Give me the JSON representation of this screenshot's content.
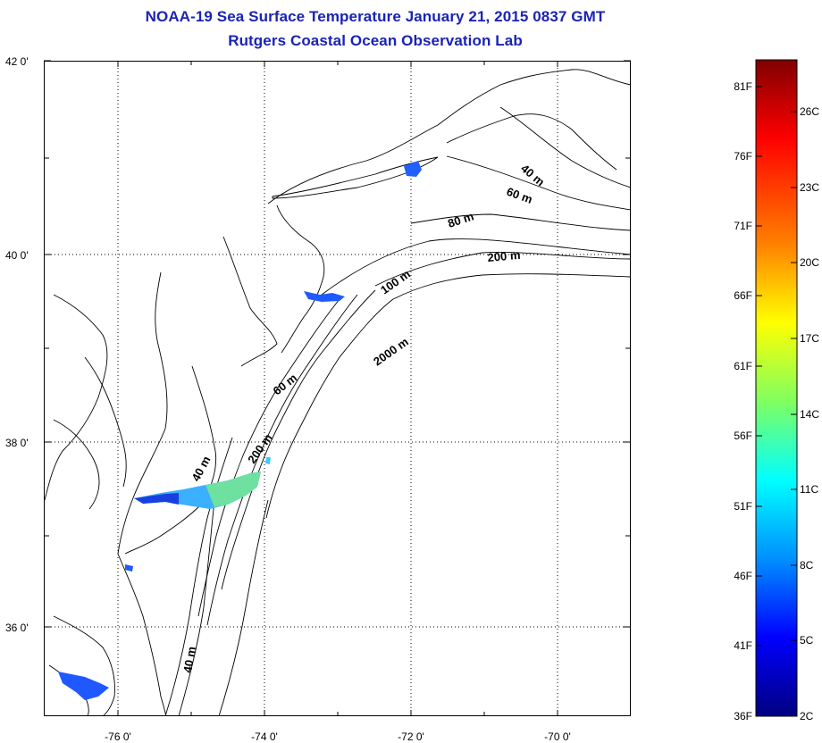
{
  "title": {
    "line1": "NOAA-19 Sea Surface Temperature January 21, 2015 0837 GMT",
    "line2": "Rutgers Coastal Ocean Observation Lab"
  },
  "map": {
    "lat_labels": [
      "42 0'",
      "40 0'",
      "38 0'",
      "36 0'"
    ],
    "lon_labels": [
      "-76 0'",
      "-74 0'",
      "-72 0'",
      "-70 0'"
    ],
    "depth_labels": [
      "40 m",
      "60 m",
      "80 m",
      "200 m",
      "100 m",
      "2000 m",
      "60 m",
      "40 m",
      "200 m",
      "40 m"
    ],
    "colors": {
      "land_line": "#000000",
      "frame": "#000000",
      "grid": "#000000"
    }
  },
  "colorbar": {
    "fahrenheit_labels": [
      "81F",
      "76F",
      "71F",
      "66F",
      "61F",
      "56F",
      "51F",
      "46F",
      "41F",
      "36F"
    ],
    "celsius_labels": [
      "26C",
      "23C",
      "20C",
      "17C",
      "14C",
      "11C",
      "8C",
      "5C",
      "2C"
    ],
    "gradient_colors": [
      "#800000",
      "#ff0000",
      "#ff8000",
      "#ffff00",
      "#80ff80",
      "#00ffff",
      "#0080ff",
      "#0000ff",
      "#000080"
    ]
  }
}
